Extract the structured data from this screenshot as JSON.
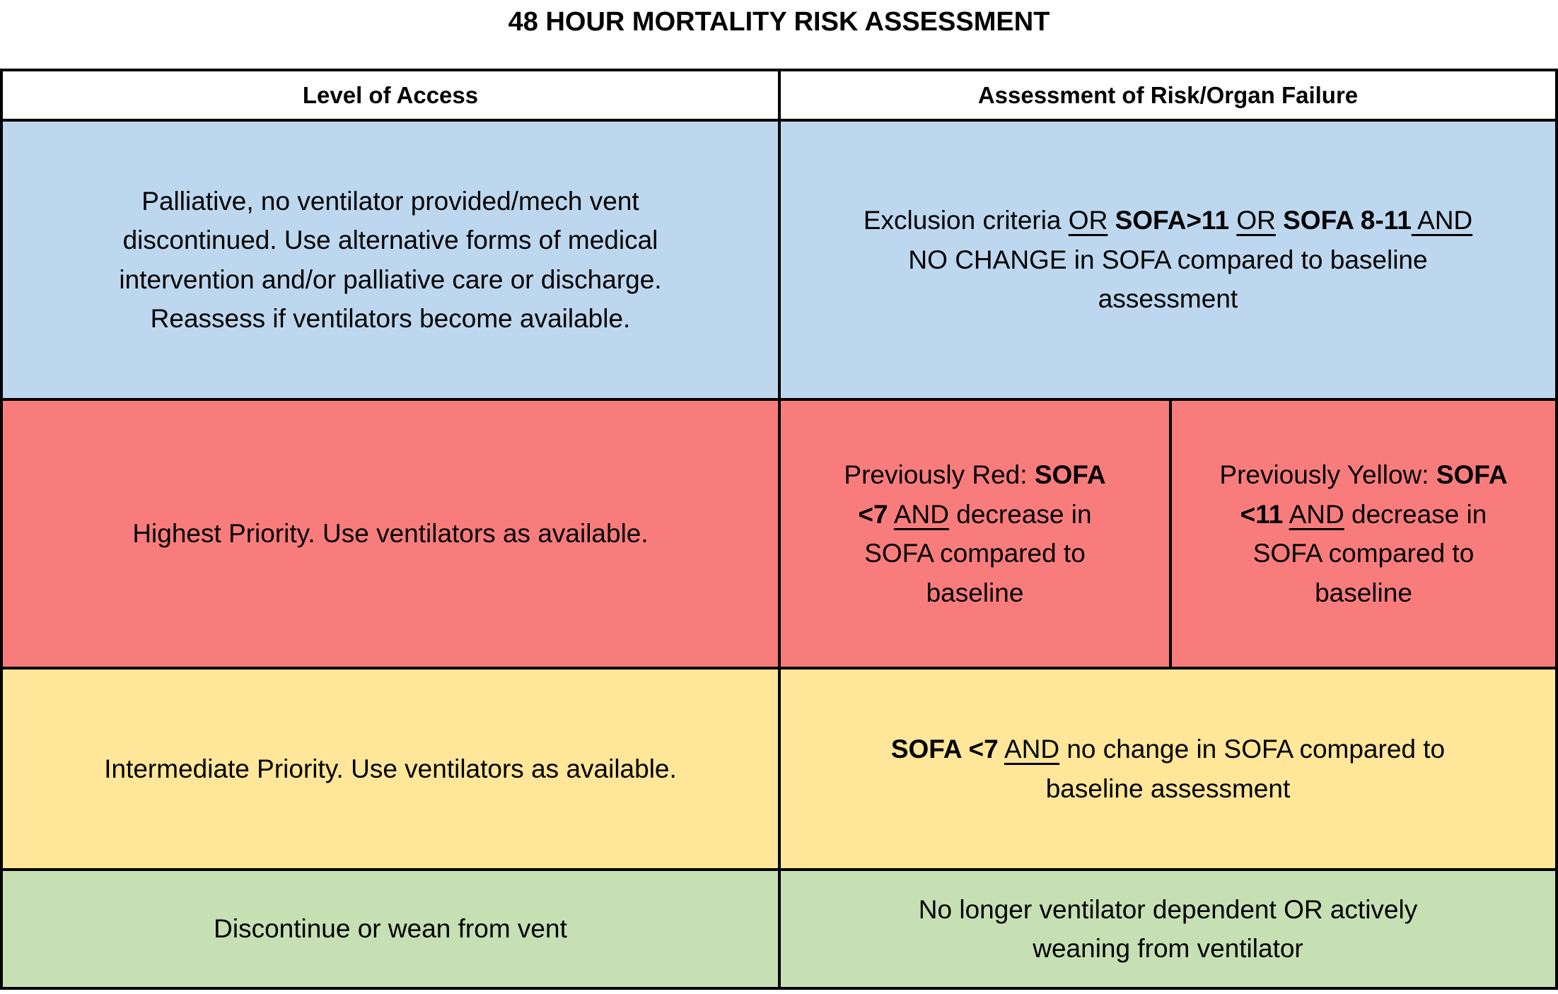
{
  "title": "48 HOUR MORTALITY RISK ASSESSMENT",
  "colors": {
    "blue": "#BDD7EE",
    "red": "#F97C7C",
    "yellow": "#FFE699",
    "green": "#C6E0B4",
    "header_bg": "#FFFFFF",
    "border": "#000000",
    "text": "#000000"
  },
  "header": {
    "level_of_access": "Level of Access",
    "assessment": "Assessment of Risk/Organ Failure"
  },
  "rows": {
    "palliative": {
      "access": [
        {
          "t": "Palliative, no ventilator provided/mech vent\ndiscontinued. Use alternative forms of medical\nintervention and/or palliative care or discharge.\nReassess if ventilators become available."
        }
      ],
      "assessment": [
        {
          "t": "Exclusion criteria "
        },
        {
          "t": "OR",
          "u": true
        },
        {
          "t": " "
        },
        {
          "t": "SOFA>11",
          "b": true
        },
        {
          "t": " "
        },
        {
          "t": "OR",
          "u": true
        },
        {
          "t": " "
        },
        {
          "t": "SOFA 8-11",
          "b": true
        },
        {
          "t": " AND",
          "u": true
        },
        {
          "t": "\nNO CHANGE in SOFA compared to baseline\nassessment"
        }
      ]
    },
    "highest": {
      "access": [
        {
          "t": "Highest Priority. Use ventilators as available."
        }
      ],
      "assessment_prev_red": [
        {
          "t": "Previously Red: "
        },
        {
          "t": "SOFA\n<7",
          "b": true
        },
        {
          "t": " "
        },
        {
          "t": "AND",
          "u": true
        },
        {
          "t": " decrease in\nSOFA compared to\nbaseline"
        }
      ],
      "assessment_prev_yellow": [
        {
          "t": "Previously Yellow: "
        },
        {
          "t": "SOFA\n<11",
          "b": true
        },
        {
          "t": " "
        },
        {
          "t": "AND",
          "u": true
        },
        {
          "t": " decrease in\nSOFA compared to\nbaseline"
        }
      ]
    },
    "intermediate": {
      "access": [
        {
          "t": "Intermediate Priority. Use ventilators as available."
        }
      ],
      "assessment": [
        {
          "t": "SOFA <7",
          "b": true
        },
        {
          "t": " "
        },
        {
          "t": "AND",
          "u": true
        },
        {
          "t": " no change in SOFA compared to\nbaseline assessment"
        }
      ]
    },
    "discontinue": {
      "access": [
        {
          "t": "Discontinue or wean from vent"
        }
      ],
      "assessment": [
        {
          "t": "No longer ventilator dependent OR actively\nweaning from ventilator"
        }
      ]
    }
  }
}
